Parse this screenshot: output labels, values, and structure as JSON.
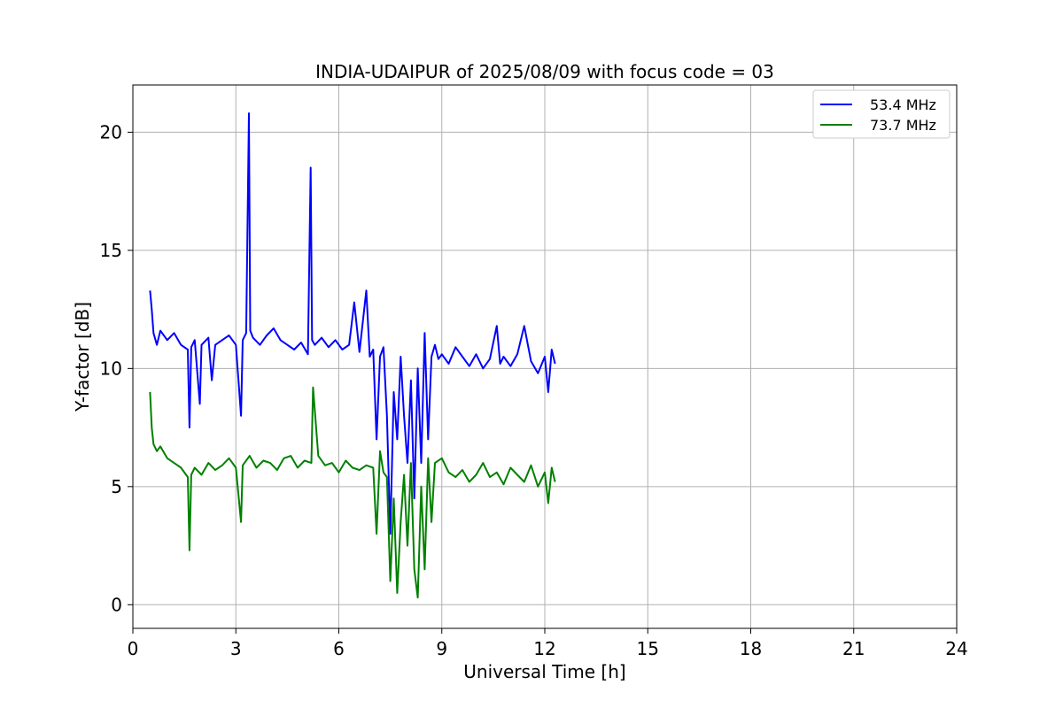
{
  "chart_data": {
    "type": "line",
    "title": "INDIA-UDAIPUR of 2025/08/09 with focus code = 03",
    "xlabel": "Universal Time [h]",
    "ylabel": "Y-factor [dB]",
    "xlim": [
      0,
      24
    ],
    "ylim": [
      -1,
      22
    ],
    "xticks": [
      0,
      3,
      6,
      9,
      12,
      15,
      18,
      21,
      24
    ],
    "yticks": [
      0,
      5,
      10,
      15,
      20
    ],
    "grid": true,
    "legend_position": "top-right",
    "series": [
      {
        "name": "53.4 MHz",
        "color": "#0000ff",
        "x": [
          0.5,
          0.55,
          0.6,
          0.7,
          0.8,
          1.0,
          1.2,
          1.4,
          1.6,
          1.65,
          1.7,
          1.8,
          1.95,
          2.0,
          2.2,
          2.3,
          2.4,
          2.6,
          2.8,
          3.0,
          3.15,
          3.2,
          3.3,
          3.38,
          3.42,
          3.5,
          3.7,
          3.9,
          4.1,
          4.3,
          4.5,
          4.7,
          4.9,
          5.1,
          5.18,
          5.22,
          5.3,
          5.5,
          5.7,
          5.9,
          6.1,
          6.3,
          6.45,
          6.6,
          6.8,
          6.9,
          7.0,
          7.1,
          7.2,
          7.3,
          7.4,
          7.5,
          7.6,
          7.7,
          7.8,
          7.9,
          8.0,
          8.1,
          8.2,
          8.3,
          8.4,
          8.5,
          8.6,
          8.7,
          8.8,
          8.9,
          9.0,
          9.2,
          9.4,
          9.6,
          9.8,
          10.0,
          10.2,
          10.4,
          10.6,
          10.7,
          10.8,
          11.0,
          11.2,
          11.4,
          11.6,
          11.8,
          12.0,
          12.1,
          12.2,
          12.3
        ],
        "values": [
          13.3,
          12.5,
          11.5,
          11.0,
          11.6,
          11.2,
          11.5,
          11.0,
          10.8,
          7.5,
          10.9,
          11.2,
          8.5,
          11.0,
          11.3,
          9.5,
          11.0,
          11.2,
          11.4,
          11.0,
          8.0,
          11.2,
          11.5,
          20.8,
          11.6,
          11.3,
          11.0,
          11.4,
          11.7,
          11.2,
          11.0,
          10.8,
          11.1,
          10.6,
          18.5,
          11.2,
          11.0,
          11.3,
          10.9,
          11.2,
          10.8,
          11.0,
          12.8,
          10.7,
          13.3,
          10.5,
          10.8,
          7.0,
          10.5,
          10.9,
          8.0,
          3.0,
          9.0,
          7.0,
          10.5,
          8.0,
          6.0,
          9.5,
          4.5,
          10.0,
          6.0,
          11.5,
          7.0,
          10.5,
          11.0,
          10.4,
          10.6,
          10.2,
          10.9,
          10.5,
          10.1,
          10.6,
          10.0,
          10.4,
          11.8,
          10.2,
          10.5,
          10.1,
          10.6,
          11.8,
          10.3,
          9.8,
          10.5,
          9.0,
          10.8,
          10.2
        ]
      },
      {
        "name": "73.7 MHz",
        "color": "#008000",
        "x": [
          0.5,
          0.55,
          0.6,
          0.7,
          0.8,
          1.0,
          1.2,
          1.4,
          1.6,
          1.65,
          1.7,
          1.8,
          2.0,
          2.2,
          2.4,
          2.6,
          2.8,
          3.0,
          3.15,
          3.2,
          3.4,
          3.6,
          3.8,
          4.0,
          4.2,
          4.4,
          4.6,
          4.8,
          5.0,
          5.2,
          5.25,
          5.4,
          5.6,
          5.8,
          6.0,
          6.2,
          6.4,
          6.6,
          6.8,
          7.0,
          7.1,
          7.2,
          7.3,
          7.4,
          7.5,
          7.6,
          7.7,
          7.8,
          7.9,
          8.0,
          8.1,
          8.2,
          8.3,
          8.4,
          8.5,
          8.6,
          8.7,
          8.8,
          9.0,
          9.2,
          9.4,
          9.6,
          9.8,
          10.0,
          10.2,
          10.4,
          10.6,
          10.8,
          11.0,
          11.2,
          11.4,
          11.6,
          11.8,
          12.0,
          12.1,
          12.2,
          12.3
        ],
        "values": [
          9.0,
          7.5,
          6.8,
          6.5,
          6.7,
          6.2,
          6.0,
          5.8,
          5.4,
          2.3,
          5.5,
          5.8,
          5.5,
          6.0,
          5.7,
          5.9,
          6.2,
          5.8,
          3.5,
          5.9,
          6.3,
          5.8,
          6.1,
          6.0,
          5.7,
          6.2,
          6.3,
          5.8,
          6.1,
          6.0,
          9.2,
          6.3,
          5.9,
          6.0,
          5.6,
          6.1,
          5.8,
          5.7,
          5.9,
          5.8,
          3.0,
          6.5,
          5.6,
          5.4,
          1.0,
          4.5,
          0.5,
          3.5,
          5.5,
          2.5,
          6.0,
          1.5,
          0.3,
          5.0,
          1.5,
          6.2,
          3.5,
          6.0,
          6.2,
          5.6,
          5.4,
          5.7,
          5.2,
          5.5,
          6.0,
          5.4,
          5.6,
          5.1,
          5.8,
          5.5,
          5.2,
          5.9,
          5.0,
          5.6,
          4.3,
          5.8,
          5.2
        ]
      }
    ]
  }
}
